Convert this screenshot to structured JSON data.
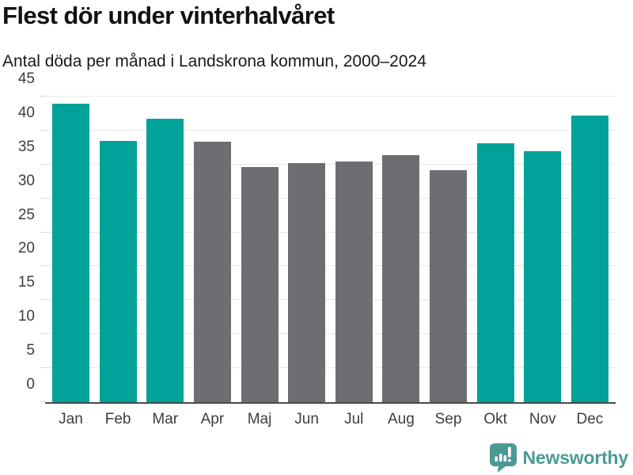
{
  "header": {
    "title": "Flest dör under vinterhalvåret",
    "subtitle": "Antal döda per månad i Landskrona kommun, 2000–2024"
  },
  "chart_data": {
    "type": "bar",
    "title": "Flest dör under vinterhalvåret",
    "subtitle": "Antal döda per månad i Landskrona kommun, 2000–2024",
    "categories": [
      "Jan",
      "Feb",
      "Mar",
      "Apr",
      "Maj",
      "Jun",
      "Jul",
      "Aug",
      "Sep",
      "Okt",
      "Nov",
      "Dec"
    ],
    "values": [
      44.0,
      38.5,
      41.7,
      38.3,
      34.6,
      35.2,
      35.5,
      36.4,
      34.2,
      38.1,
      37.0,
      42.2
    ],
    "bar_color_keys": [
      "winter",
      "winter",
      "winter",
      "summer",
      "summer",
      "summer",
      "summer",
      "summer",
      "summer",
      "winter",
      "winter",
      "winter"
    ],
    "ylim": [
      0,
      45
    ],
    "yticks": [
      0,
      5,
      10,
      15,
      20,
      25,
      30,
      35,
      40,
      45
    ],
    "grid": true,
    "legend": false,
    "xlabel": "",
    "ylabel": ""
  },
  "colors": {
    "winter": "#00a29a",
    "summer": "#6e6e72",
    "grid": "#e8e8e8",
    "axis": "#4a4a4a",
    "tick_label": "#3d3d3d",
    "title_text": "#111111",
    "brand": "#4a9a94"
  },
  "footer": {
    "brand": "Newsworthy",
    "logo_icon": "bar-chart-speech-bubble"
  }
}
